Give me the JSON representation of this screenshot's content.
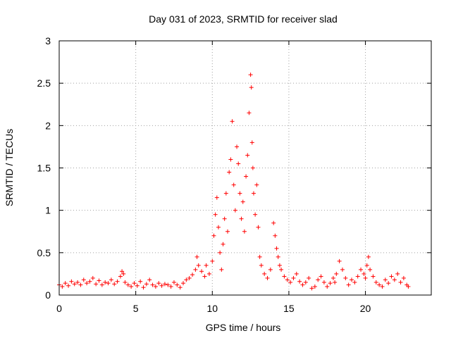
{
  "chart_data": {
    "type": "scatter",
    "title": "Day 031 of 2023, SRMTID for receiver slad",
    "xlabel": "GPS time / hours",
    "ylabel": "SRMTID / TECUs",
    "xlim": [
      0,
      24.3
    ],
    "ylim": [
      0,
      3
    ],
    "xticks": [
      0,
      5,
      10,
      15,
      20
    ],
    "yticks": [
      0,
      0.5,
      1,
      1.5,
      2,
      2.5,
      3
    ],
    "ytick_labels": [
      "0",
      "0.5",
      "1",
      "1.5",
      "2",
      "2.5",
      "3"
    ],
    "grid": true,
    "marker": "+",
    "series": [
      {
        "name": "SRMTID",
        "color": "#ff0000",
        "x": [
          0.0,
          0.2,
          0.4,
          0.6,
          0.8,
          1.0,
          1.2,
          1.4,
          1.6,
          1.8,
          2.0,
          2.2,
          2.4,
          2.6,
          2.8,
          3.0,
          3.2,
          3.4,
          3.6,
          3.8,
          4.0,
          4.1,
          4.2,
          4.3,
          4.5,
          4.7,
          4.9,
          5.1,
          5.3,
          5.5,
          5.7,
          5.9,
          6.1,
          6.3,
          6.5,
          6.7,
          6.9,
          7.1,
          7.3,
          7.5,
          7.7,
          7.9,
          8.1,
          8.3,
          8.5,
          8.7,
          8.9,
          9.0,
          9.1,
          9.3,
          9.5,
          9.6,
          9.8,
          10.0,
          10.1,
          10.2,
          10.3,
          10.4,
          10.5,
          10.6,
          10.7,
          10.8,
          10.9,
          11.0,
          11.1,
          11.2,
          11.3,
          11.4,
          11.5,
          11.6,
          11.7,
          11.8,
          11.9,
          12.0,
          12.1,
          12.2,
          12.3,
          12.4,
          12.5,
          12.55,
          12.6,
          12.65,
          12.7,
          12.8,
          12.9,
          13.0,
          13.1,
          13.2,
          13.4,
          13.6,
          13.8,
          14.0,
          14.1,
          14.2,
          14.3,
          14.4,
          14.5,
          14.7,
          14.9,
          15.1,
          15.3,
          15.5,
          15.7,
          15.9,
          16.1,
          16.3,
          16.5,
          16.7,
          16.9,
          17.1,
          17.3,
          17.5,
          17.7,
          17.9,
          18.0,
          18.1,
          18.3,
          18.5,
          18.7,
          18.9,
          19.1,
          19.3,
          19.5,
          19.7,
          19.9,
          20.0,
          20.1,
          20.2,
          20.3,
          20.5,
          20.7,
          20.9,
          21.1,
          21.3,
          21.5,
          21.7,
          21.9,
          22.1,
          22.3,
          22.5,
          22.7,
          22.8
        ],
        "y": [
          0.12,
          0.1,
          0.14,
          0.11,
          0.16,
          0.13,
          0.15,
          0.12,
          0.18,
          0.14,
          0.16,
          0.2,
          0.13,
          0.17,
          0.12,
          0.15,
          0.14,
          0.18,
          0.13,
          0.16,
          0.22,
          0.28,
          0.25,
          0.15,
          0.12,
          0.1,
          0.14,
          0.11,
          0.16,
          0.09,
          0.13,
          0.18,
          0.12,
          0.1,
          0.14,
          0.11,
          0.13,
          0.12,
          0.1,
          0.15,
          0.12,
          0.09,
          0.14,
          0.18,
          0.2,
          0.24,
          0.3,
          0.45,
          0.35,
          0.28,
          0.22,
          0.35,
          0.25,
          0.4,
          0.7,
          0.95,
          1.15,
          0.8,
          0.5,
          0.3,
          0.6,
          0.9,
          1.2,
          0.75,
          1.45,
          1.6,
          2.05,
          1.3,
          1.0,
          1.75,
          1.55,
          1.2,
          0.9,
          1.1,
          0.75,
          1.4,
          1.65,
          2.15,
          2.6,
          2.45,
          1.8,
          1.5,
          1.2,
          0.95,
          1.3,
          0.8,
          0.45,
          0.35,
          0.25,
          0.2,
          0.3,
          0.85,
          0.7,
          0.55,
          0.45,
          0.35,
          0.3,
          0.22,
          0.18,
          0.15,
          0.2,
          0.25,
          0.16,
          0.12,
          0.15,
          0.2,
          0.08,
          0.1,
          0.18,
          0.22,
          0.15,
          0.1,
          0.14,
          0.2,
          0.15,
          0.25,
          0.4,
          0.3,
          0.2,
          0.12,
          0.18,
          0.15,
          0.22,
          0.3,
          0.25,
          0.2,
          0.35,
          0.45,
          0.3,
          0.22,
          0.15,
          0.12,
          0.1,
          0.18,
          0.14,
          0.22,
          0.18,
          0.25,
          0.15,
          0.2,
          0.12,
          0.1
        ]
      }
    ]
  }
}
